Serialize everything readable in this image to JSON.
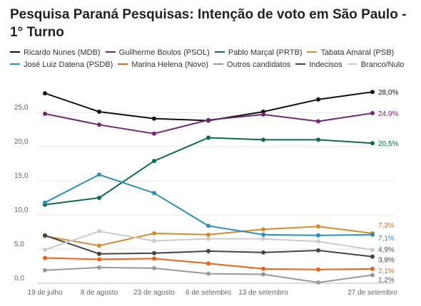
{
  "chart_data": {
    "type": "line",
    "title": "Pesquisa Paraná Pesquisas: Intenção de voto em São Paulo - 1° Turno",
    "x": [
      "19 de julho",
      "8 de agosto",
      "23 de agosto",
      "6 de setembro",
      "13 de setembro",
      "",
      "27 de setembro"
    ],
    "x_dates": [
      "2024-07-19",
      "2024-08-08",
      "2024-08-23",
      "2024-09-06",
      "2024-09-13",
      "2024-09-20",
      "2024-09-27"
    ],
    "ylim": [
      0,
      30
    ],
    "yticks": [
      "0,0",
      "5,0",
      "10,0",
      "15,0",
      "20,0",
      "25,0"
    ],
    "grid": true,
    "legend_position": "top",
    "series": [
      {
        "name": "Ricardo Nunes (MDB)",
        "color": "#111111",
        "values": [
          27.8,
          25.1,
          24.1,
          23.8,
          25.1,
          26.9,
          28.0
        ],
        "end_label": "28,0%"
      },
      {
        "name": "Guilherme Boulos (PSOL)",
        "color": "#742774",
        "values": [
          24.8,
          23.2,
          21.9,
          23.9,
          24.7,
          23.7,
          24.9
        ],
        "end_label": "24,9%"
      },
      {
        "name": "Pablo Marçal (PRTB)",
        "color": "#0e6b4b",
        "values": [
          11.5,
          12.5,
          17.9,
          21.3,
          21.0,
          21.0,
          20.5
        ],
        "end_label": "20,5%"
      },
      {
        "name": "Tabata Amaral (PSB)",
        "color": "#d58a2c",
        "values": [
          6.9,
          5.5,
          7.3,
          7.1,
          7.9,
          8.3,
          7.3
        ],
        "end_label": "7,3%"
      },
      {
        "name": "José Luiz Datena (PSDB)",
        "color": "#2a90b8",
        "values": [
          11.8,
          15.9,
          13.2,
          8.4,
          7.1,
          7.0,
          7.1
        ],
        "end_label": "7,1%"
      },
      {
        "name": "Marina Helena (Novo)",
        "color": "#e8631b",
        "values": [
          3.7,
          3.5,
          3.6,
          2.9,
          2.1,
          2.0,
          2.1
        ],
        "end_label": "2,1%"
      },
      {
        "name": "Outros candidatos",
        "color": "#999999",
        "values": [
          1.9,
          2.3,
          2.2,
          1.4,
          1.3,
          0.1,
          1.2
        ],
        "end_label": "1,2%"
      },
      {
        "name": "Indecisos",
        "color": "#444444",
        "values": [
          7.0,
          4.3,
          4.4,
          4.7,
          4.5,
          4.8,
          3.9
        ],
        "end_label": "3,9%"
      },
      {
        "name": "Branco/Nulo",
        "color": "#cccccc",
        "values": [
          4.9,
          7.6,
          6.2,
          6.5,
          6.5,
          6.1,
          4.9
        ],
        "end_label": "4,9%"
      }
    ]
  }
}
